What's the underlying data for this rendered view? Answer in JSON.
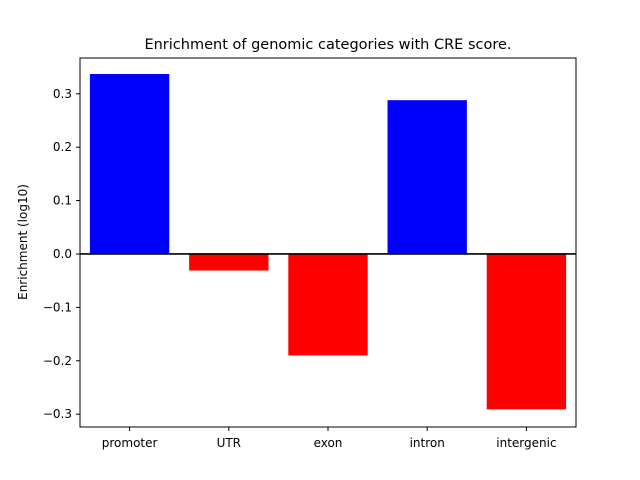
{
  "chart_data": {
    "type": "bar",
    "title": "Enrichment of genomic categories with CRE score.",
    "xlabel": "",
    "ylabel": "Enrichment (log10)",
    "categories": [
      "promoter",
      "UTR",
      "exon",
      "intron",
      "intergenic"
    ],
    "values": [
      0.337,
      -0.031,
      -0.19,
      0.288,
      -0.291
    ],
    "ylim": [
      -0.324,
      0.367
    ],
    "yticks": [
      -0.3,
      -0.2,
      -0.1,
      0.0,
      0.1,
      0.2,
      0.3
    ],
    "ytick_labels": [
      "−0.3",
      "−0.2",
      "−0.1",
      "0.0",
      "0.1",
      "0.2",
      "0.3"
    ],
    "zero_line": true,
    "grid": false,
    "colors": {
      "positive": "#0000ff",
      "negative": "#ff0000",
      "axis": "#000000"
    }
  }
}
